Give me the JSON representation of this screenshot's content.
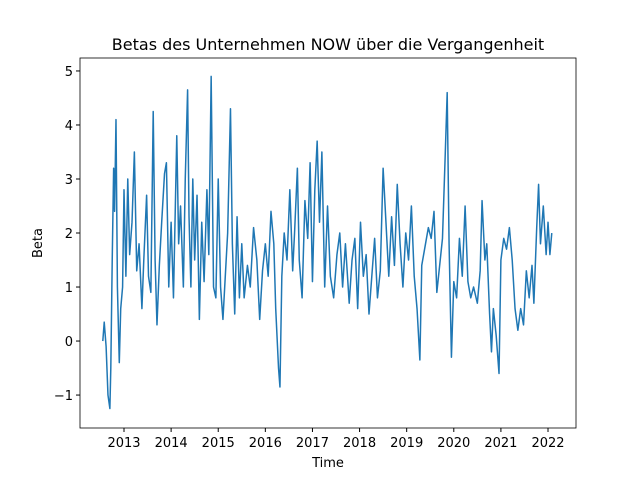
{
  "chart_data": {
    "type": "line",
    "title": "Betas des Unternehmen NOW über die Vergangenheit",
    "xlabel": "Time",
    "ylabel": "Beta",
    "color": "#1f77b4",
    "grid": false,
    "xlim": [
      2012.066,
      2022.594
    ],
    "xticks": [
      2013,
      2014,
      2015,
      2016,
      2017,
      2018,
      2019,
      2020,
      2021,
      2022
    ],
    "ylim": [
      -1.61,
      5.24
    ],
    "yticks": [
      {
        "value": -1,
        "label": "−1"
      },
      0,
      1,
      2,
      3,
      4,
      5
    ],
    "x": [
      2012.55,
      2012.58,
      2012.62,
      2012.66,
      2012.7,
      2012.72,
      2012.75,
      2012.78,
      2012.8,
      2012.83,
      2012.86,
      2012.9,
      2012.93,
      2012.97,
      2013.0,
      2013.04,
      2013.08,
      2013.12,
      2013.17,
      2013.22,
      2013.27,
      2013.32,
      2013.38,
      2013.42,
      2013.48,
      2013.52,
      2013.57,
      2013.62,
      2013.66,
      2013.7,
      2013.75,
      2013.8,
      2013.86,
      2013.9,
      2013.95,
      2014.0,
      2014.05,
      2014.12,
      2014.16,
      2014.2,
      2014.26,
      2014.3,
      2014.35,
      2014.38,
      2014.42,
      2014.46,
      2014.5,
      2014.55,
      2014.6,
      2014.65,
      2014.7,
      2014.76,
      2014.8,
      2014.85,
      2014.9,
      2014.95,
      2015.0,
      2015.05,
      2015.1,
      2015.15,
      2015.2,
      2015.26,
      2015.3,
      2015.35,
      2015.4,
      2015.45,
      2015.5,
      2015.55,
      2015.62,
      2015.68,
      2015.75,
      2015.82,
      2015.88,
      2015.94,
      2016.0,
      2016.06,
      2016.12,
      2016.18,
      2016.22,
      2016.28,
      2016.31,
      2016.35,
      2016.4,
      2016.46,
      2016.52,
      2016.58,
      2016.62,
      2016.68,
      2016.72,
      2016.78,
      2016.84,
      2016.9,
      2016.95,
      2017.0,
      2017.05,
      2017.1,
      2017.15,
      2017.2,
      2017.26,
      2017.32,
      2017.38,
      2017.45,
      2017.52,
      2017.58,
      2017.64,
      2017.7,
      2017.78,
      2017.84,
      2017.9,
      2017.96,
      2018.02,
      2018.08,
      2018.14,
      2018.2,
      2018.26,
      2018.32,
      2018.38,
      2018.44,
      2018.5,
      2018.56,
      2018.62,
      2018.68,
      2018.74,
      2018.8,
      2018.86,
      2018.92,
      2018.98,
      2019.04,
      2019.1,
      2019.16,
      2019.22,
      2019.28,
      2019.32,
      2019.4,
      2019.46,
      2019.52,
      2019.58,
      2019.64,
      2019.7,
      2019.76,
      2019.82,
      2019.86,
      2019.9,
      2019.95,
      2020.0,
      2020.06,
      2020.12,
      2020.18,
      2020.24,
      2020.3,
      2020.36,
      2020.42,
      2020.5,
      2020.56,
      2020.6,
      2020.66,
      2020.7,
      2020.76,
      2020.8,
      2020.84,
      2020.9,
      2020.96,
      2021.0,
      2021.06,
      2021.12,
      2021.18,
      2021.24,
      2021.3,
      2021.36,
      2021.42,
      2021.48,
      2021.54,
      2021.6,
      2021.66,
      2021.7,
      2021.76,
      2021.8,
      2021.84,
      2021.9,
      2021.96,
      2022.0,
      2022.04,
      2022.08
    ],
    "values": [
      0.0,
      0.35,
      -0.1,
      -1.0,
      -1.25,
      -0.5,
      1.5,
      3.2,
      2.4,
      4.1,
      1.0,
      -0.4,
      0.6,
      1.0,
      2.8,
      1.2,
      3.0,
      1.6,
      2.2,
      3.5,
      1.3,
      1.8,
      0.6,
      1.5,
      2.7,
      1.2,
      0.9,
      4.25,
      1.5,
      0.3,
      1.4,
      2.2,
      3.1,
      3.3,
      1.0,
      2.2,
      0.8,
      3.8,
      1.8,
      2.5,
      1.0,
      3.0,
      4.65,
      2.3,
      1.0,
      3.0,
      1.5,
      2.7,
      0.4,
      2.2,
      1.1,
      2.8,
      1.6,
      4.9,
      1.0,
      0.8,
      3.0,
      1.0,
      0.4,
      1.2,
      2.0,
      4.3,
      1.8,
      0.5,
      2.3,
      0.8,
      1.8,
      0.8,
      1.4,
      1.0,
      2.1,
      1.5,
      0.4,
      1.3,
      1.8,
      1.2,
      2.4,
      1.8,
      0.6,
      -0.5,
      -0.85,
      1.2,
      2.0,
      1.5,
      2.8,
      1.3,
      2.0,
      3.2,
      1.5,
      0.8,
      2.6,
      1.9,
      3.3,
      1.1,
      2.8,
      3.7,
      2.2,
      3.5,
      1.0,
      2.5,
      1.2,
      0.8,
      1.6,
      2.0,
      1.0,
      1.8,
      0.7,
      1.5,
      1.9,
      0.6,
      2.2,
      1.2,
      1.6,
      0.5,
      1.2,
      1.9,
      0.8,
      1.3,
      3.2,
      2.2,
      1.2,
      2.3,
      1.4,
      2.9,
      1.8,
      1.0,
      2.0,
      1.5,
      2.5,
      1.2,
      0.6,
      -0.35,
      1.4,
      1.8,
      2.1,
      1.9,
      2.4,
      0.9,
      1.4,
      1.9,
      3.5,
      4.6,
      1.8,
      -0.3,
      1.1,
      0.8,
      1.9,
      1.2,
      2.5,
      1.1,
      0.8,
      1.0,
      0.7,
      1.3,
      2.6,
      1.5,
      1.8,
      0.5,
      -0.2,
      0.6,
      0.1,
      -0.6,
      1.5,
      1.9,
      1.7,
      2.1,
      1.5,
      0.6,
      0.2,
      0.6,
      0.3,
      1.3,
      0.8,
      1.4,
      0.7,
      2.1,
      2.9,
      1.8,
      2.5,
      1.6,
      2.2,
      1.6,
      2.0
    ]
  }
}
